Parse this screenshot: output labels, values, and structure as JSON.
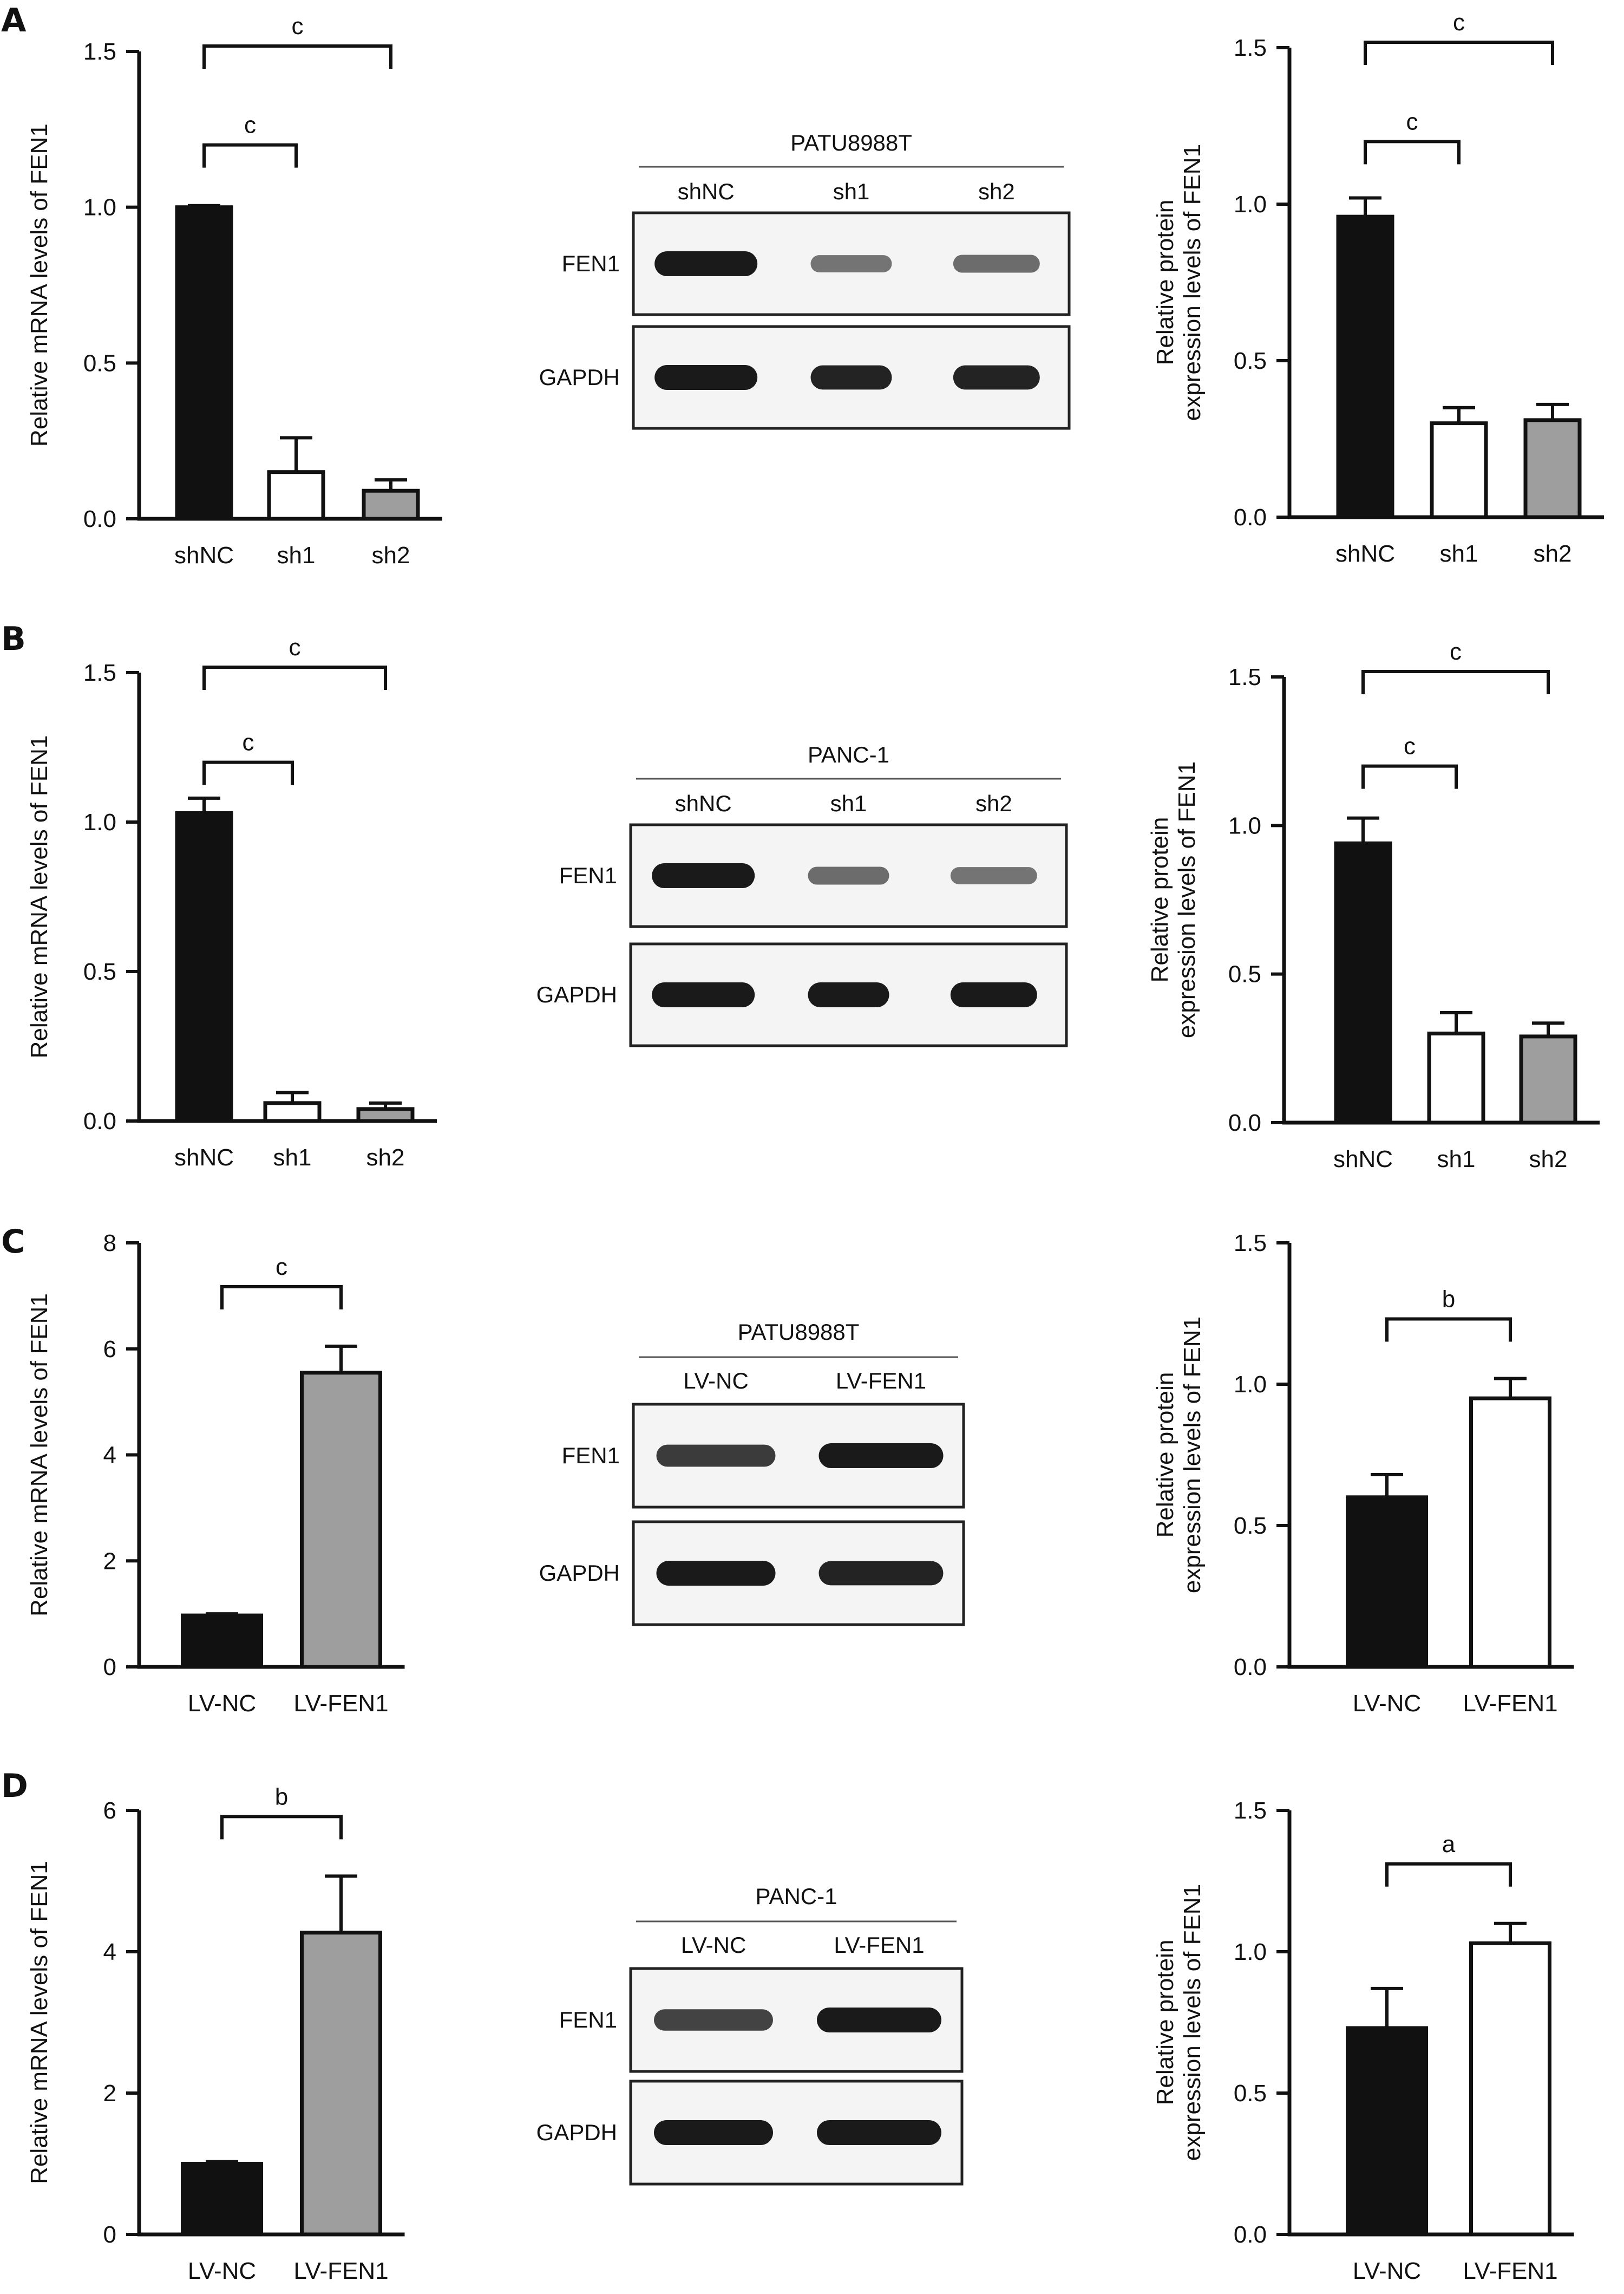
{
  "colors": {
    "black_bar": "#111111",
    "white_bar": "#ffffff",
    "grey_bar": "#9e9e9e",
    "axis": "#111111",
    "band": "#1a1a1a",
    "blot_bg": "#f4f4f4"
  },
  "panels": [
    {
      "letter": "A",
      "mrna_ylabel": "Relative mRNA levels of FEN1",
      "protein_ylabel_line1": "Relative protein",
      "protein_ylabel_line2": "expression levels of FEN1",
      "blot": {
        "cell_line": "PATU8988T",
        "lanes": [
          "shNC",
          "sh1",
          "sh2"
        ],
        "rows": [
          {
            "label": "FEN1",
            "intensity": [
              1.0,
              0.45,
              0.5
            ]
          },
          {
            "label": "GAPDH",
            "intensity": [
              1.0,
              0.95,
              0.95
            ]
          }
        ]
      }
    },
    {
      "letter": "B",
      "mrna_ylabel": "Relative mRNA levels of FEN1",
      "protein_ylabel_line1": "Relative protein",
      "protein_ylabel_line2": "expression levels of FEN1",
      "blot": {
        "cell_line": "PANC-1",
        "lanes": [
          "shNC",
          "sh1",
          "sh2"
        ],
        "rows": [
          {
            "label": "FEN1",
            "intensity": [
              1.0,
              0.5,
              0.45
            ]
          },
          {
            "label": "GAPDH",
            "intensity": [
              1.0,
              1.0,
              1.0
            ]
          }
        ]
      }
    },
    {
      "letter": "C",
      "mrna_ylabel": "Relative mRNA levels of FEN1",
      "protein_ylabel_line1": "Relative protein",
      "protein_ylabel_line2": "expression levels of FEN1",
      "blot": {
        "cell_line": "PATU8988T",
        "lanes": [
          "LV-NC",
          "LV-FEN1"
        ],
        "rows": [
          {
            "label": "FEN1",
            "intensity": [
              0.8,
              1.0
            ]
          },
          {
            "label": "GAPDH",
            "intensity": [
              1.0,
              0.95
            ]
          }
        ]
      }
    },
    {
      "letter": "D",
      "mrna_ylabel": "Relative mRNA levels of FEN1",
      "protein_ylabel_line1": "Relative protein",
      "protein_ylabel_line2": "expression levels of FEN1",
      "blot": {
        "cell_line": "PANC-1",
        "lanes": [
          "LV-NC",
          "LV-FEN1"
        ],
        "rows": [
          {
            "label": "FEN1",
            "intensity": [
              0.75,
              1.0
            ]
          },
          {
            "label": "GAPDH",
            "intensity": [
              1.0,
              1.0
            ]
          }
        ]
      }
    }
  ],
  "chart_data": [
    {
      "id": "A-mrna",
      "type": "bar",
      "panel": "A",
      "categories": [
        "shNC",
        "sh1",
        "sh2"
      ],
      "values": [
        1.0,
        0.15,
        0.09
      ],
      "errors": [
        0.005,
        0.11,
        0.035
      ],
      "fills": [
        "black",
        "white",
        "grey"
      ],
      "ylabel": "Relative mRNA levels of FEN1",
      "ylim": [
        0,
        1.5
      ],
      "yticks": [
        0.0,
        0.5,
        1.0,
        1.5
      ],
      "ytick_labels": [
        "0.0",
        "0.5",
        "1.0",
        "1.5"
      ],
      "significance": [
        {
          "from": 0,
          "to": 1,
          "label": "c"
        },
        {
          "from": 0,
          "to": 2,
          "label": "c"
        }
      ]
    },
    {
      "id": "A-protein",
      "type": "bar",
      "panel": "A",
      "categories": [
        "shNC",
        "sh1",
        "sh2"
      ],
      "values": [
        0.96,
        0.3,
        0.31
      ],
      "errors": [
        0.06,
        0.05,
        0.05
      ],
      "fills": [
        "black",
        "white",
        "grey"
      ],
      "ylabel": "Relative protein expression levels of FEN1",
      "ylim": [
        0,
        1.5
      ],
      "yticks": [
        0.0,
        0.5,
        1.0,
        1.5
      ],
      "ytick_labels": [
        "0.0",
        "0.5",
        "1.0",
        "1.5"
      ],
      "significance": [
        {
          "from": 0,
          "to": 1,
          "label": "c"
        },
        {
          "from": 0,
          "to": 2,
          "label": "c"
        }
      ]
    },
    {
      "id": "B-mrna",
      "type": "bar",
      "panel": "B",
      "categories": [
        "shNC",
        "sh1",
        "sh2"
      ],
      "values": [
        1.03,
        0.06,
        0.04
      ],
      "errors": [
        0.05,
        0.035,
        0.02
      ],
      "fills": [
        "black",
        "white",
        "grey"
      ],
      "ylabel": "Relative mRNA levels of FEN1",
      "ylim": [
        0,
        1.5
      ],
      "yticks": [
        0.0,
        0.5,
        1.0,
        1.5
      ],
      "ytick_labels": [
        "0.0",
        "0.5",
        "1.0",
        "1.5"
      ],
      "significance": [
        {
          "from": 0,
          "to": 1,
          "label": "c"
        },
        {
          "from": 0,
          "to": 2,
          "label": "c"
        }
      ]
    },
    {
      "id": "B-protein",
      "type": "bar",
      "panel": "B",
      "categories": [
        "shNC",
        "sh1",
        "sh2"
      ],
      "values": [
        0.94,
        0.3,
        0.29
      ],
      "errors": [
        0.085,
        0.07,
        0.045
      ],
      "fills": [
        "black",
        "white",
        "grey"
      ],
      "ylabel": "Relative protein expression levels of FEN1",
      "ylim": [
        0,
        1.5
      ],
      "yticks": [
        0.0,
        0.5,
        1.0,
        1.5
      ],
      "ytick_labels": [
        "0.0",
        "0.5",
        "1.0",
        "1.5"
      ],
      "significance": [
        {
          "from": 0,
          "to": 1,
          "label": "c"
        },
        {
          "from": 0,
          "to": 2,
          "label": "c"
        }
      ]
    },
    {
      "id": "C-mrna",
      "type": "bar",
      "panel": "C",
      "categories": [
        "LV-NC",
        "LV-FEN1"
      ],
      "values": [
        0.97,
        5.55
      ],
      "errors": [
        0.03,
        0.5
      ],
      "fills": [
        "black",
        "grey"
      ],
      "ylabel": "Relative mRNA levels of FEN1",
      "ylim": [
        0,
        8
      ],
      "yticks": [
        0,
        2,
        4,
        6,
        8
      ],
      "ytick_labels": [
        "0",
        "2",
        "4",
        "6",
        "8"
      ],
      "significance": [
        {
          "from": 0,
          "to": 1,
          "label": "c"
        }
      ]
    },
    {
      "id": "C-protein",
      "type": "bar",
      "panel": "C",
      "categories": [
        "LV-NC",
        "LV-FEN1"
      ],
      "values": [
        0.6,
        0.95
      ],
      "errors": [
        0.08,
        0.07
      ],
      "fills": [
        "black",
        "white"
      ],
      "ylabel": "Relative protein expression levels of FEN1",
      "ylim": [
        0,
        1.5
      ],
      "yticks": [
        0.0,
        0.5,
        1.0,
        1.5
      ],
      "ytick_labels": [
        "0.0",
        "0.5",
        "1.0",
        "1.5"
      ],
      "significance": [
        {
          "from": 0,
          "to": 1,
          "label": "b"
        }
      ]
    },
    {
      "id": "D-mrna",
      "type": "bar",
      "panel": "D",
      "categories": [
        "LV-NC",
        "LV-FEN1"
      ],
      "values": [
        1.0,
        4.27
      ],
      "errors": [
        0.03,
        0.8
      ],
      "fills": [
        "black",
        "grey"
      ],
      "ylabel": "Relative mRNA levels of FEN1",
      "ylim": [
        0,
        6
      ],
      "yticks": [
        0,
        2,
        4,
        6
      ],
      "ytick_labels": [
        "0",
        "2",
        "4",
        "6"
      ],
      "significance": [
        {
          "from": 0,
          "to": 1,
          "label": "b"
        }
      ]
    },
    {
      "id": "D-protein",
      "type": "bar",
      "panel": "D",
      "categories": [
        "LV-NC",
        "LV-FEN1"
      ],
      "values": [
        0.73,
        1.03
      ],
      "errors": [
        0.14,
        0.07
      ],
      "fills": [
        "black",
        "white"
      ],
      "ylabel": "Relative protein expression levels of FEN1",
      "ylim": [
        0,
        1.5
      ],
      "yticks": [
        0.0,
        0.5,
        1.0,
        1.5
      ],
      "ytick_labels": [
        "0.0",
        "0.5",
        "1.0",
        "1.5"
      ],
      "significance": [
        {
          "from": 0,
          "to": 1,
          "label": "a"
        }
      ]
    }
  ]
}
